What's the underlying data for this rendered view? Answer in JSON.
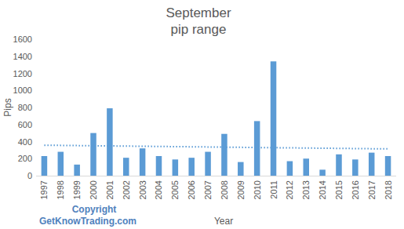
{
  "chart_data": {
    "type": "bar",
    "title": "September",
    "subtitle": "pip range",
    "x_label": "Year",
    "y_label": "Pips",
    "annotations": [
      "Copyright",
      "GetKnowTrading.com"
    ],
    "categories": [
      "1997",
      "1998",
      "1999",
      "2000",
      "2001",
      "2002",
      "2003",
      "2004",
      "2005",
      "2006",
      "2007",
      "2008",
      "2009",
      "2010",
      "2011",
      "2012",
      "2013",
      "2014",
      "2015",
      "2016",
      "2017",
      "2018"
    ],
    "values": [
      230,
      280,
      130,
      500,
      790,
      210,
      320,
      230,
      190,
      210,
      280,
      490,
      160,
      640,
      1340,
      170,
      200,
      70,
      250,
      190,
      270,
      230
    ],
    "color": "#5b9bd5",
    "ylim": [
      0,
      1600
    ],
    "yticks": [
      0,
      200,
      400,
      600,
      800,
      1000,
      1200,
      1400,
      1600
    ],
    "grid": false
  }
}
